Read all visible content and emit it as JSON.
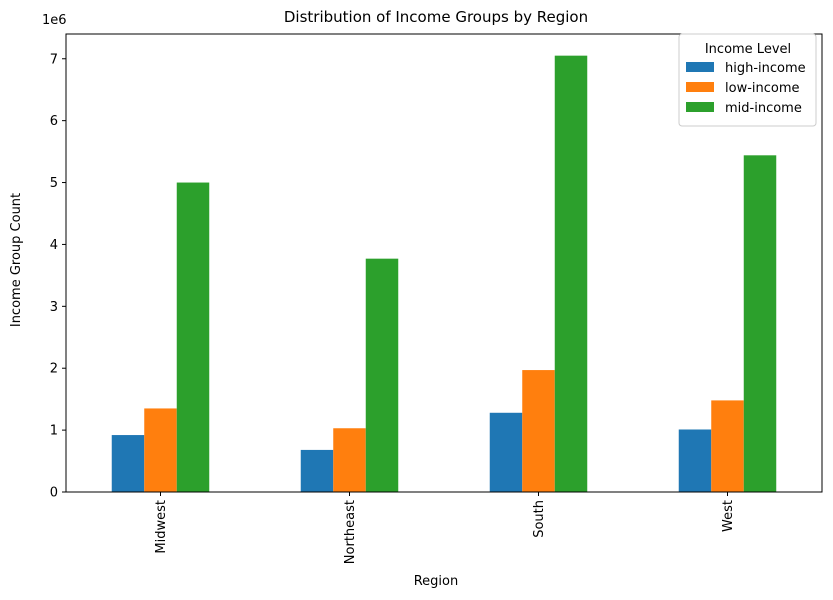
{
  "chart_data": {
    "type": "bar",
    "title": "Distribution of Income Groups by Region",
    "xlabel": "Region",
    "ylabel": "Income Group Count",
    "y_scale_note": "1e6",
    "categories": [
      "Midwest",
      "Northeast",
      "South",
      "West"
    ],
    "ylim": [
      0,
      7400000
    ],
    "yticks": [
      0,
      1000000,
      2000000,
      3000000,
      4000000,
      5000000,
      6000000,
      7000000
    ],
    "ytick_labels": [
      "0",
      "1",
      "2",
      "3",
      "4",
      "5",
      "6",
      "7"
    ],
    "legend": {
      "title": "Income Level",
      "placement": "top-right"
    },
    "grid": false,
    "series": [
      {
        "name": "high-income",
        "color": "#1f77b4",
        "values": [
          920000,
          680000,
          1280000,
          1010000
        ]
      },
      {
        "name": "low-income",
        "color": "#ff7f0e",
        "values": [
          1350000,
          1030000,
          1970000,
          1480000
        ]
      },
      {
        "name": "mid-income",
        "color": "#2ca02c",
        "values": [
          5000000,
          3770000,
          7050000,
          5440000
        ]
      }
    ]
  }
}
